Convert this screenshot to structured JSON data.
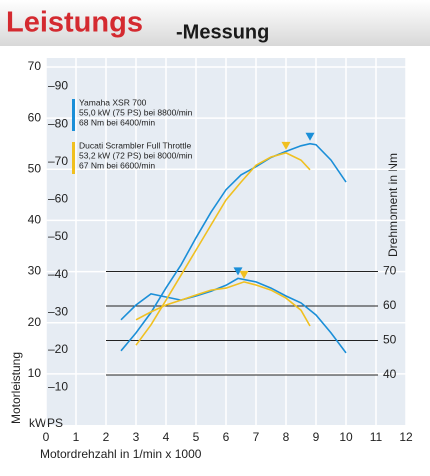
{
  "chart_data": {
    "type": "dyno",
    "title": "Leistungs",
    "title_suffix": "-Messung",
    "x_label": "Motordrehzahl in 1/min x 1000",
    "y_label": "Motorleistung",
    "y2_label": "Drehmoment in Nm",
    "y_unit_label": "kW",
    "ps_unit_label": "PS",
    "xlim": [
      0,
      12
    ],
    "xticks": [
      0,
      1,
      2,
      3,
      4,
      5,
      6,
      7,
      8,
      9,
      10,
      11,
      12
    ],
    "ylim": [
      0,
      70
    ],
    "yticks": [
      10,
      20,
      30,
      40,
      50,
      60,
      70
    ],
    "ps_lim": [
      0,
      95.2
    ],
    "ps_ticks": [
      {
        "value": 10,
        "label": "–10"
      },
      {
        "value": 20,
        "label": "–20"
      },
      {
        "value": 30,
        "label": "–30"
      },
      {
        "value": 40,
        "label": "–40"
      },
      {
        "value": 50,
        "label": "–50"
      },
      {
        "value": 60,
        "label": "–60"
      },
      {
        "value": 70,
        "label": "–70"
      },
      {
        "value": 80,
        "label": "–80"
      },
      {
        "value": 90,
        "label": "–90"
      }
    ],
    "y2lim": [
      25.5,
      129.3
    ],
    "y2ticks": [
      40,
      50,
      60,
      70
    ],
    "grid": true,
    "series": [
      {
        "name": "Yamaha XSR 700",
        "color": "#1b8fd8",
        "details": [
          "55,0 kW (75 PS) bei 8800/min",
          "68 Nm bei 6400/min"
        ],
        "power_x": [
          2.5,
          3,
          3.5,
          4,
          4.5,
          5,
          5.5,
          6,
          6.5,
          7,
          7.5,
          8,
          8.5,
          8.8,
          9,
          9.5,
          10
        ],
        "power_values": [
          14.5,
          18,
          22,
          26.8,
          31.3,
          36.6,
          41.6,
          46,
          48.9,
          50.5,
          52.3,
          53.5,
          54.6,
          55.0,
          54.8,
          51.8,
          47.5
        ],
        "torque_x": [
          2.5,
          3,
          3.5,
          4,
          4.5,
          5,
          5.5,
          6,
          6.4,
          7,
          7.5,
          8,
          8.5,
          9,
          9.5,
          10
        ],
        "torque_values": [
          56,
          60.3,
          63.5,
          62.6,
          61.7,
          62.9,
          64.3,
          66,
          68,
          67,
          65.2,
          62.9,
          60.9,
          57.4,
          52.2,
          46.4
        ],
        "peak_power": [
          8.8,
          55.0
        ],
        "peak_torque": [
          6.4,
          68
        ]
      },
      {
        "name": "Ducati Scrambler Full Throttle",
        "color": "#f0c020",
        "details": [
          "53,2 kW (72 PS) bei 8000/min",
          "67 Nm bei 6600/min"
        ],
        "power_x": [
          3,
          3.5,
          4,
          4.5,
          5,
          5.5,
          6,
          6.5,
          7,
          7.5,
          8,
          8.5,
          8.8
        ],
        "power_values": [
          15.6,
          19.6,
          24.4,
          29.3,
          34.2,
          39.1,
          44,
          47.5,
          50.8,
          52.4,
          53.2,
          51.8,
          49.9
        ],
        "torque_x": [
          3,
          3.5,
          4,
          4.5,
          5,
          5.5,
          6,
          6.6,
          7,
          7.5,
          8,
          8.5,
          8.8
        ],
        "torque_values": [
          56,
          58.3,
          60.3,
          61.7,
          63.2,
          64.6,
          65.2,
          67,
          66.1,
          64.6,
          62.3,
          58.8,
          54.2
        ],
        "peak_power": [
          8.0,
          53.2
        ],
        "peak_torque": [
          6.6,
          67
        ]
      }
    ]
  }
}
